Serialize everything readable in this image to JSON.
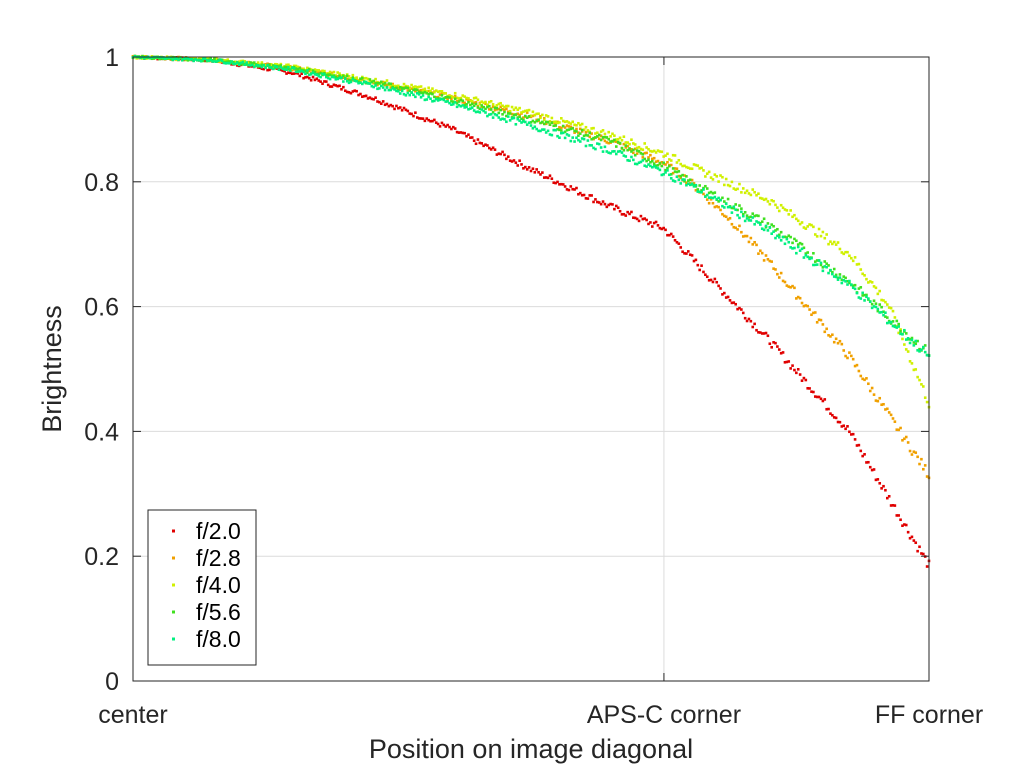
{
  "chart_data": {
    "type": "scatter",
    "title": "",
    "xlabel": "Position on image diagonal",
    "ylabel": "Brightness",
    "xlim": [
      0,
      1
    ],
    "ylim": [
      0,
      1
    ],
    "x_ticks": [
      {
        "value": 0,
        "label": "center"
      },
      {
        "value": 0.667,
        "label": "APS-C corner"
      },
      {
        "value": 1,
        "label": "FF corner"
      }
    ],
    "y_ticks": [
      {
        "value": 0,
        "label": "0"
      },
      {
        "value": 0.2,
        "label": "0.2"
      },
      {
        "value": 0.4,
        "label": "0.4"
      },
      {
        "value": 0.6,
        "label": "0.6"
      },
      {
        "value": 0.8,
        "label": "0.8"
      },
      {
        "value": 1,
        "label": "1"
      }
    ],
    "grid": true,
    "legend_position": "bottom-left",
    "series": [
      {
        "name": "f/2.0",
        "color": "#e00000",
        "x": [
          0,
          0.1,
          0.2,
          0.3,
          0.4,
          0.5,
          0.6,
          0.667,
          0.7,
          0.8,
          0.9,
          1.0
        ],
        "y": [
          1.0,
          0.995,
          0.975,
          0.935,
          0.885,
          0.82,
          0.76,
          0.725,
          0.68,
          0.545,
          0.4,
          0.185
        ]
      },
      {
        "name": "f/2.8",
        "color": "#f0a000",
        "x": [
          0,
          0.1,
          0.2,
          0.3,
          0.4,
          0.5,
          0.6,
          0.667,
          0.7,
          0.75,
          0.8,
          0.9,
          1.0
        ],
        "y": [
          1.0,
          0.996,
          0.982,
          0.96,
          0.935,
          0.905,
          0.865,
          0.83,
          0.8,
          0.74,
          0.67,
          0.52,
          0.33
        ]
      },
      {
        "name": "f/4.0",
        "color": "#d0f000",
        "x": [
          0,
          0.1,
          0.2,
          0.3,
          0.4,
          0.5,
          0.6,
          0.667,
          0.7,
          0.8,
          0.9,
          0.95,
          1.0
        ],
        "y": [
          1.0,
          0.996,
          0.984,
          0.963,
          0.94,
          0.91,
          0.875,
          0.845,
          0.825,
          0.77,
          0.685,
          0.6,
          0.445
        ]
      },
      {
        "name": "f/5.6",
        "color": "#40e020",
        "x": [
          0,
          0.1,
          0.2,
          0.3,
          0.4,
          0.5,
          0.6,
          0.667,
          0.7,
          0.8,
          0.9,
          1.0
        ],
        "y": [
          1.0,
          0.995,
          0.982,
          0.96,
          0.932,
          0.9,
          0.865,
          0.825,
          0.8,
          0.73,
          0.64,
          0.525
        ]
      },
      {
        "name": "f/8.0",
        "color": "#00f080",
        "x": [
          0,
          0.1,
          0.2,
          0.3,
          0.4,
          0.5,
          0.6,
          0.667,
          0.7,
          0.8,
          0.9,
          1.0
        ],
        "y": [
          1.0,
          0.995,
          0.98,
          0.955,
          0.925,
          0.89,
          0.85,
          0.815,
          0.795,
          0.72,
          0.635,
          0.52
        ]
      }
    ]
  }
}
